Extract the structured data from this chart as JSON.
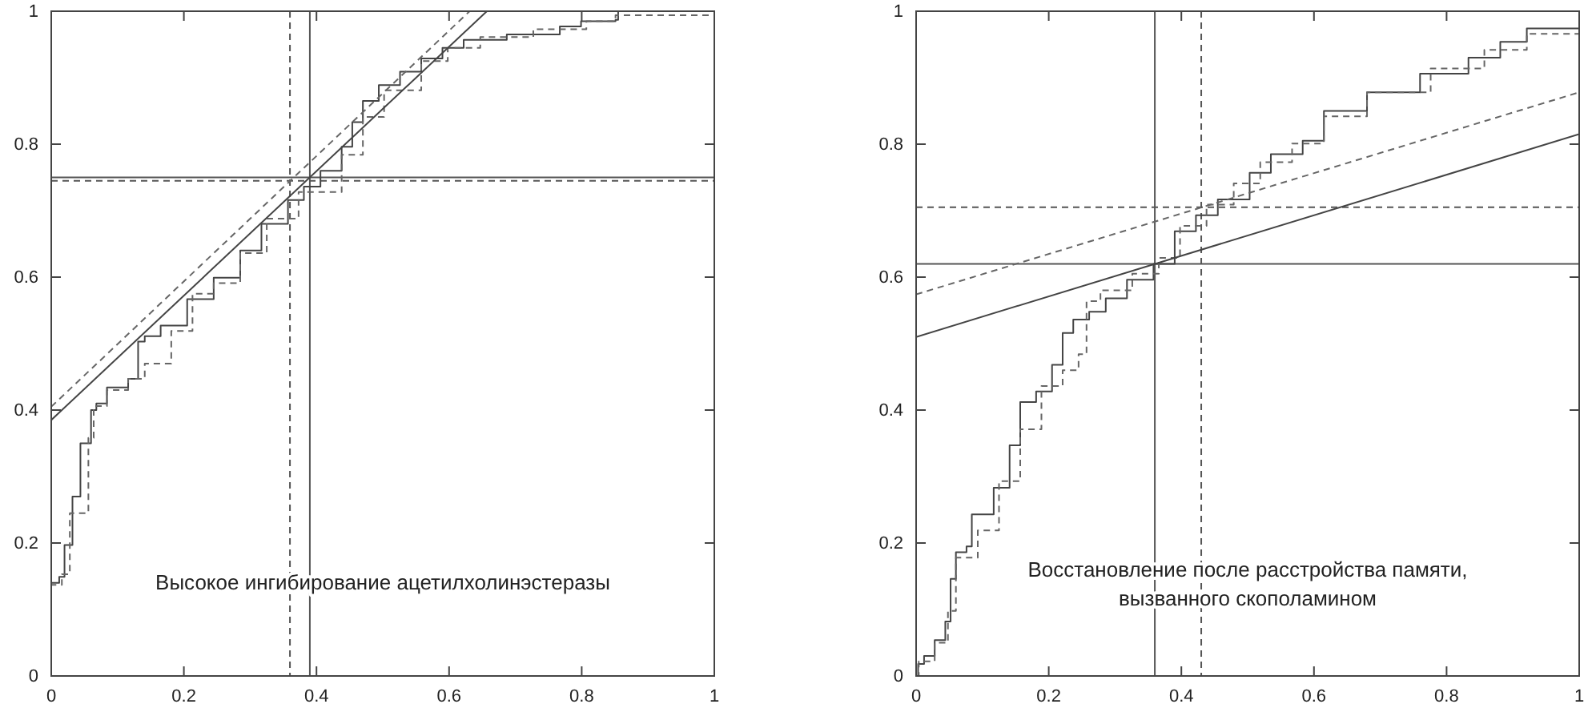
{
  "chart_data": [
    {
      "type": "step",
      "xlim": [
        0,
        1
      ],
      "ylim": [
        0,
        1
      ],
      "xticks": [
        0,
        0.2,
        0.4,
        0.6,
        0.8,
        1
      ],
      "yticks": [
        0,
        0.2,
        0.4,
        0.6,
        0.8,
        1
      ],
      "grid": false,
      "annotations": [
        "Высокое ингибирование ацетилхолинэстеразы"
      ],
      "ref_lines": [
        {
          "axis": "x",
          "value": 0.39,
          "color": "#555555",
          "line_style": "solid"
        },
        {
          "axis": "x",
          "value": 0.36,
          "color": "#555555",
          "line_style": "dashed"
        },
        {
          "axis": "y",
          "value": 0.75,
          "color": "#555555",
          "line_style": "solid"
        },
        {
          "axis": "y",
          "value": 0.745,
          "color": "#555555",
          "line_style": "dashed"
        }
      ],
      "series": [
        {
          "type": "step",
          "color": "#444444",
          "line_style": "solid",
          "x": [
            0,
            0,
            0.012,
            0.02,
            0.032,
            0.044,
            0.06,
            0.068,
            0.084,
            0.116,
            0.131,
            0.141,
            0.165,
            0.205,
            0.245,
            0.285,
            0.317,
            0.357,
            0.381,
            0.406,
            0.438,
            0.454,
            0.47,
            0.494,
            0.526,
            0.558,
            0.59,
            0.622,
            0.687,
            0.767,
            0.799,
            0.851,
            0.855,
            1
          ],
          "values": [
            0,
            0.14,
            0.149,
            0.197,
            0.27,
            0.35,
            0.4,
            0.41,
            0.434,
            0.447,
            0.503,
            0.511,
            0.527,
            0.567,
            0.599,
            0.64,
            0.68,
            0.716,
            0.736,
            0.76,
            0.796,
            0.833,
            0.865,
            0.889,
            0.909,
            0.929,
            0.945,
            0.957,
            0.965,
            0.977,
            0.985,
            0.987,
            1,
            1
          ]
        },
        {
          "type": "step",
          "color": "#666666",
          "line_style": "dashed",
          "x": [
            0,
            0,
            0.016,
            0.028,
            0.056,
            0.064,
            0.084,
            0.116,
            0.141,
            0.181,
            0.213,
            0.245,
            0.285,
            0.325,
            0.373,
            0.438,
            0.47,
            0.502,
            0.558,
            0.598,
            0.647,
            0.727,
            0.807,
            0.851,
            1
          ],
          "values": [
            0,
            0.137,
            0.153,
            0.245,
            0.358,
            0.406,
            0.43,
            0.447,
            0.47,
            0.519,
            0.575,
            0.591,
            0.636,
            0.688,
            0.728,
            0.784,
            0.841,
            0.881,
            0.925,
            0.945,
            0.961,
            0.973,
            0.985,
            0.994,
            1
          ]
        },
        {
          "type": "line",
          "color": "#444444",
          "line_style": "solid",
          "x": [
            0,
            0.657
          ],
          "values": [
            0.385,
            1
          ]
        },
        {
          "type": "line",
          "color": "#666666",
          "line_style": "dashed",
          "x": [
            0,
            0.631
          ],
          "values": [
            0.405,
            1
          ]
        }
      ]
    },
    {
      "type": "step",
      "xlim": [
        0,
        1
      ],
      "ylim": [
        0,
        1
      ],
      "xticks": [
        0,
        0.2,
        0.4,
        0.6,
        0.8,
        1
      ],
      "yticks": [
        0,
        0.2,
        0.4,
        0.6,
        0.8,
        1
      ],
      "grid": false,
      "annotations": [
        "Восстановление после расстройства памяти,\nвызванного скополамином"
      ],
      "ref_lines": [
        {
          "axis": "x",
          "value": 0.36,
          "color": "#555555",
          "line_style": "solid"
        },
        {
          "axis": "x",
          "value": 0.43,
          "color": "#555555",
          "line_style": "dashed"
        },
        {
          "axis": "y",
          "value": 0.62,
          "color": "#555555",
          "line_style": "solid"
        },
        {
          "axis": "y",
          "value": 0.705,
          "color": "#555555",
          "line_style": "dashed"
        }
      ],
      "series": [
        {
          "type": "step",
          "color": "#444444",
          "line_style": "solid",
          "x": [
            0,
            0.003,
            0.012,
            0.028,
            0.044,
            0.052,
            0.06,
            0.076,
            0.084,
            0.117,
            0.141,
            0.157,
            0.181,
            0.205,
            0.221,
            0.237,
            0.261,
            0.286,
            0.318,
            0.358,
            0.39,
            0.422,
            0.455,
            0.503,
            0.535,
            0.583,
            0.615,
            0.68,
            0.76,
            0.833,
            0.881,
            0.921,
            1
          ],
          "values": [
            0,
            0.018,
            0.03,
            0.054,
            0.082,
            0.146,
            0.186,
            0.195,
            0.243,
            0.283,
            0.347,
            0.412,
            0.428,
            0.468,
            0.516,
            0.536,
            0.548,
            0.568,
            0.596,
            0.62,
            0.669,
            0.693,
            0.717,
            0.757,
            0.785,
            0.805,
            0.85,
            0.878,
            0.906,
            0.93,
            0.954,
            0.974,
            1
          ]
        },
        {
          "type": "step",
          "color": "#666666",
          "line_style": "dashed",
          "x": [
            0,
            0.004,
            0.028,
            0.048,
            0.06,
            0.093,
            0.125,
            0.157,
            0.189,
            0.221,
            0.245,
            0.257,
            0.278,
            0.326,
            0.366,
            0.398,
            0.438,
            0.479,
            0.519,
            0.567,
            0.615,
            0.68,
            0.776,
            0.857,
            0.921,
            1
          ],
          "values": [
            0,
            0.022,
            0.05,
            0.098,
            0.178,
            0.219,
            0.293,
            0.371,
            0.436,
            0.46,
            0.484,
            0.564,
            0.58,
            0.605,
            0.629,
            0.677,
            0.709,
            0.741,
            0.773,
            0.801,
            0.842,
            0.878,
            0.914,
            0.942,
            0.966,
            1
          ]
        },
        {
          "type": "line",
          "color": "#444444",
          "line_style": "solid",
          "x": [
            0,
            1
          ],
          "values": [
            0.51,
            0.815
          ]
        },
        {
          "type": "line",
          "color": "#666666",
          "line_style": "dashed",
          "x": [
            0,
            1
          ],
          "values": [
            0.574,
            0.878
          ]
        }
      ]
    }
  ]
}
